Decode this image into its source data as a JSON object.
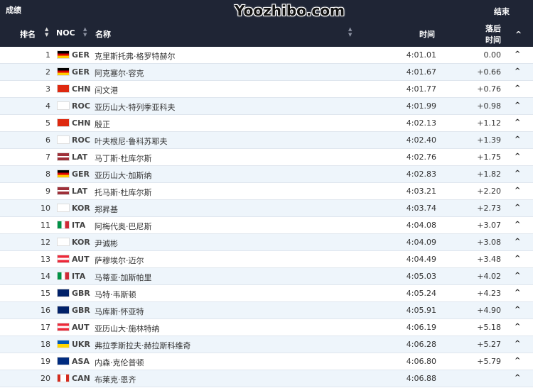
{
  "header": {
    "section_title": "成绩",
    "finish_label": "结束",
    "col_rank": "排名",
    "col_noc": "NOC",
    "col_name": "名称",
    "col_time": "时间",
    "col_gap_line1": "落后",
    "col_gap_line2": "时间"
  },
  "results": [
    {
      "rank": "1",
      "noc": "GER",
      "name": "克里斯托弗·格罗特赫尔",
      "time": "4:01.01",
      "gap": "0.00"
    },
    {
      "rank": "2",
      "noc": "GER",
      "name": "阿克塞尔·容克",
      "time": "4:01.67",
      "gap": "+0.66"
    },
    {
      "rank": "3",
      "noc": "CHN",
      "name": "闫文港",
      "time": "4:01.77",
      "gap": "+0.76"
    },
    {
      "rank": "4",
      "noc": "ROC",
      "name": "亚历山大·特列季亚科夫",
      "time": "4:01.99",
      "gap": "+0.98"
    },
    {
      "rank": "5",
      "noc": "CHN",
      "name": "殷正",
      "time": "4:02.13",
      "gap": "+1.12"
    },
    {
      "rank": "6",
      "noc": "ROC",
      "name": "叶夫根尼·鲁科苏耶夫",
      "time": "4:02.40",
      "gap": "+1.39"
    },
    {
      "rank": "7",
      "noc": "LAT",
      "name": "马丁斯·杜库尔斯",
      "time": "4:02.76",
      "gap": "+1.75"
    },
    {
      "rank": "8",
      "noc": "GER",
      "name": "亚历山大·加斯纳",
      "time": "4:02.83",
      "gap": "+1.82"
    },
    {
      "rank": "9",
      "noc": "LAT",
      "name": "托马斯·杜库尔斯",
      "time": "4:03.21",
      "gap": "+2.20"
    },
    {
      "rank": "10",
      "noc": "KOR",
      "name": "郑昇基",
      "time": "4:03.74",
      "gap": "+2.73"
    },
    {
      "rank": "11",
      "noc": "ITA",
      "name": "阿梅代奥·巴尼斯",
      "time": "4:04.08",
      "gap": "+3.07"
    },
    {
      "rank": "12",
      "noc": "KOR",
      "name": "尹诚彬",
      "time": "4:04.09",
      "gap": "+3.08"
    },
    {
      "rank": "13",
      "noc": "AUT",
      "name": "萨穆埃尔·迈尔",
      "time": "4:04.49",
      "gap": "+3.48"
    },
    {
      "rank": "14",
      "noc": "ITA",
      "name": "马蒂亚·加斯帕里",
      "time": "4:05.03",
      "gap": "+4.02"
    },
    {
      "rank": "15",
      "noc": "GBR",
      "name": "马特·韦斯顿",
      "time": "4:05.24",
      "gap": "+4.23"
    },
    {
      "rank": "16",
      "noc": "GBR",
      "name": "马库斯·怀亚特",
      "time": "4:05.91",
      "gap": "+4.90"
    },
    {
      "rank": "17",
      "noc": "AUT",
      "name": "亚历山大·施林特纳",
      "time": "4:06.19",
      "gap": "+5.18"
    },
    {
      "rank": "18",
      "noc": "UKR",
      "name": "弗拉季斯拉夫·赫拉斯科维奇",
      "time": "4:06.28",
      "gap": "+5.27"
    },
    {
      "rank": "19",
      "noc": "ASA",
      "name": "内森·克伦普顿",
      "time": "4:06.80",
      "gap": "+5.79"
    },
    {
      "rank": "20",
      "noc": "CAN",
      "name": "布莱克·恩齐",
      "time": "4:06.88",
      "gap": ""
    }
  ],
  "watermark": "Yoozhibo.com",
  "colors": {
    "header_bg": "#1f2535",
    "row_alt": "#eef5fb"
  }
}
